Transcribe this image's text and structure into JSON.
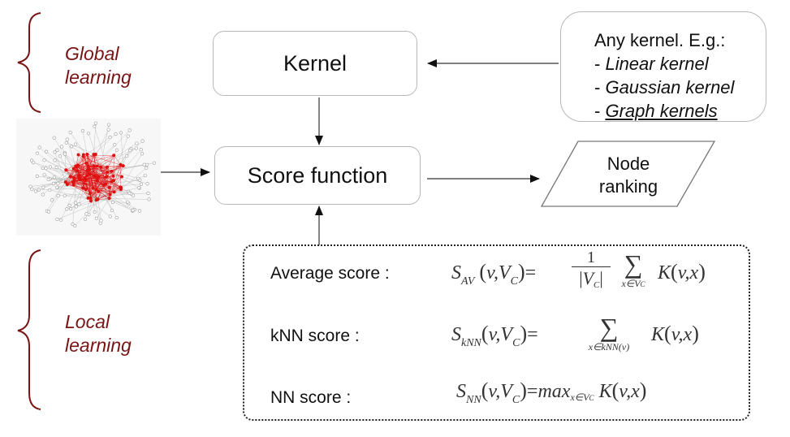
{
  "left": {
    "global_label_line1": "Global",
    "global_label_line2": "learning",
    "local_label_line1": "Local",
    "local_label_line2": "learning"
  },
  "boxes": {
    "kernel": "Kernel",
    "score_function": "Score function",
    "node_ranking_line1": "Node",
    "node_ranking_line2": "ranking"
  },
  "kernel_options": {
    "heading": "Any kernel. E.g.:",
    "items": [
      {
        "prefix": "- ",
        "text": "Linear kernel"
      },
      {
        "prefix": "- ",
        "text": "Gaussian kernel"
      },
      {
        "prefix": "- ",
        "text": "Graph kernels"
      }
    ]
  },
  "scores": {
    "average_label": "Average score :",
    "knn_label": "kNN score :",
    "nn_label": "NN score :"
  },
  "colors": {
    "accent_text": "#7a1414",
    "network_core": "#e01010",
    "network_periphery": "#9a9a9a"
  }
}
